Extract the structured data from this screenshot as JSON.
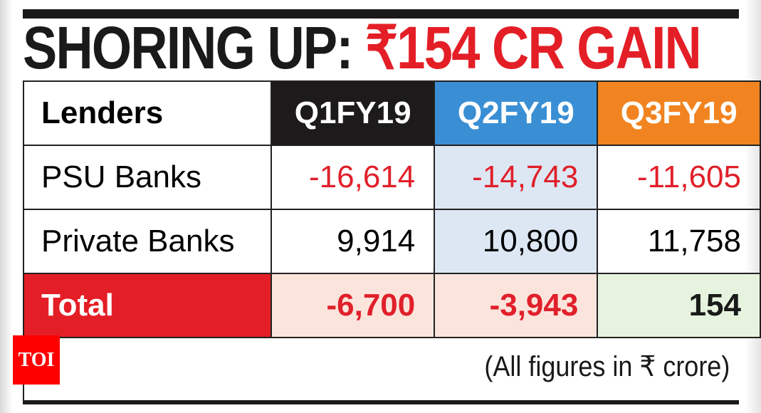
{
  "title": {
    "prefix": "SHORING UP: ",
    "highlight": "₹154 CR GAIN"
  },
  "table": {
    "headers": [
      "Lenders",
      "Q1FY19",
      "Q2FY19",
      "Q3FY19"
    ],
    "rows": [
      {
        "label": "PSU Banks",
        "values": [
          "-16,614",
          "-14,743",
          "-11,605"
        ]
      },
      {
        "label": "Private Banks",
        "values": [
          "9,914",
          "10,800",
          "11,758"
        ]
      },
      {
        "label": "Total",
        "values": [
          "-6,700",
          "-3,943",
          "154"
        ]
      }
    ]
  },
  "note": "(All figures in ₹ crore)",
  "logo": "TOI",
  "colors": {
    "q1": "#1c1a1b",
    "q2": "#3a8fd4",
    "q3": "#f18420",
    "negative": "#e0202a",
    "total": "#e41e26"
  },
  "chart_data": {
    "type": "table",
    "title": "SHORING UP: ₹154 CR GAIN",
    "columns": [
      "Lenders",
      "Q1FY19",
      "Q2FY19",
      "Q3FY19"
    ],
    "categories": [
      "Q1FY19",
      "Q2FY19",
      "Q3FY19"
    ],
    "series": [
      {
        "name": "PSU Banks",
        "values": [
          -16614,
          -14743,
          -11605
        ]
      },
      {
        "name": "Private Banks",
        "values": [
          9914,
          10800,
          11758
        ]
      },
      {
        "name": "Total",
        "values": [
          -6700,
          -3943,
          154
        ]
      }
    ],
    "unit": "₹ crore",
    "annotation": "(All figures in ₹ crore)"
  }
}
